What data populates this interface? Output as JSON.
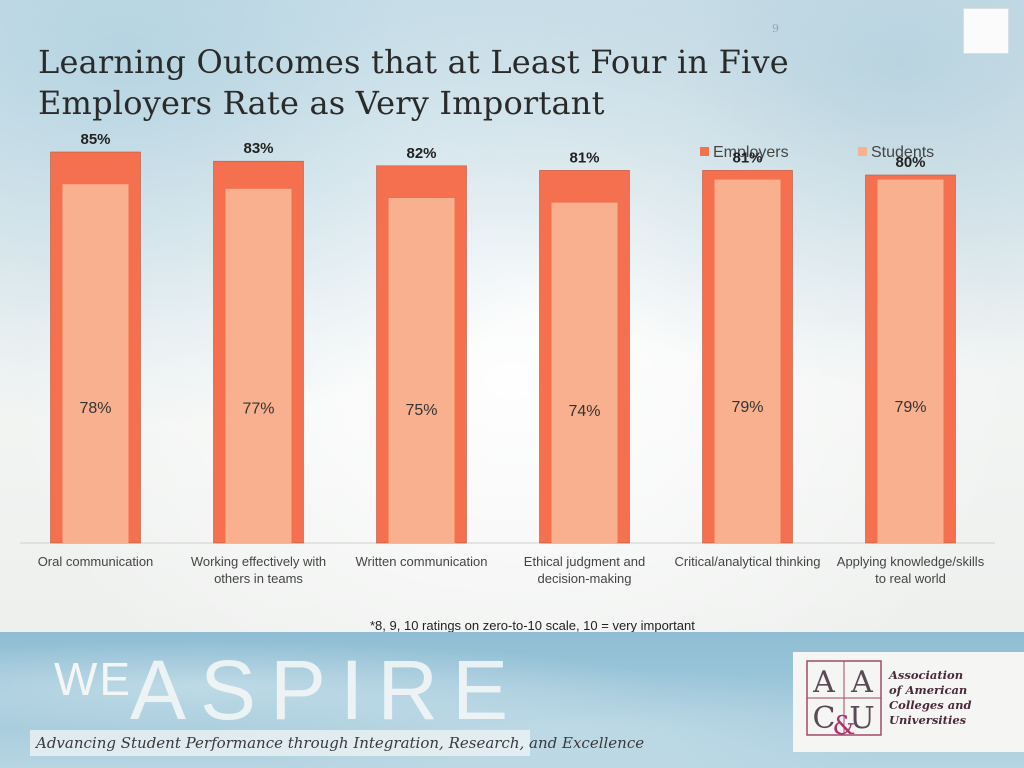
{
  "slide": {
    "page_number": "9",
    "title_line1": "Learning Outcomes that at Least Four in Five",
    "title_line2": "Employers Rate as Very Important",
    "footnote": "*8, 9, 10 ratings on zero-to-10 scale, 10 = very important"
  },
  "colors": {
    "employers": "#f4704f",
    "students": "#f9b08f",
    "bar_edge": "#b85a44"
  },
  "chart_data": {
    "type": "bar",
    "title": "Learning Outcomes that at Least Four in Five Employers Rate as Very Important",
    "categories": [
      [
        "Oral  communication"
      ],
      [
        "Working effectively with",
        "others in teams"
      ],
      [
        "Written communication"
      ],
      [
        "Ethical judgment and",
        "decision-making"
      ],
      [
        "Critical/analytical thinking"
      ],
      [
        "Applying knowledge/skills",
        "to real world"
      ]
    ],
    "series": [
      {
        "name": "Employers",
        "values": [
          85,
          83,
          82,
          81,
          81,
          80
        ],
        "labels": [
          "85%",
          "83%",
          "82%",
          "81%",
          "81%",
          "80%"
        ]
      },
      {
        "name": "Students",
        "values": [
          78,
          77,
          75,
          74,
          79,
          79
        ],
        "labels": [
          "78%",
          "77%",
          "75%",
          "74%",
          "79%",
          "79%"
        ]
      }
    ],
    "ylim": [
      0,
      100
    ],
    "grid": false,
    "legend_position": "top-right"
  },
  "footer": {
    "we": "WE",
    "aspire": "ASPIRE",
    "tagline": "Advancing Student Performance through Integration, Research, and Excellence",
    "logo_letters": [
      "A",
      "A",
      "C",
      "&",
      "U"
    ],
    "logo_name": [
      "Association",
      "of American",
      "Colleges and",
      "Universities"
    ]
  }
}
